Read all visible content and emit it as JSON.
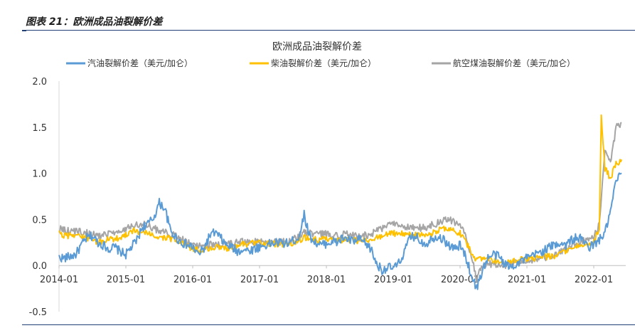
{
  "figure": {
    "caption": "图表 21：欧洲成品油裂解价差"
  },
  "chart_data": {
    "type": "line",
    "title": "欧洲成品油裂解价差",
    "xlabel": "",
    "ylabel": "",
    "ylim": [
      -0.5,
      2.0
    ],
    "yticks": [
      "2.0",
      "1.5",
      "1.0",
      "0.5",
      "0.0",
      "-0.5"
    ],
    "xticks": [
      "2014-01",
      "2015-01",
      "2016-01",
      "2017-01",
      "2018-01",
      "2019-01",
      "2020-01",
      "2021-01",
      "2022-01"
    ],
    "x_range": [
      "2014-01",
      "2022-06"
    ],
    "grid": false,
    "legend_position": "top",
    "series": [
      {
        "name": "汽油裂解价差（美元/加仑）",
        "color": "#5b9bd5",
        "points": [
          [
            "2014-01",
            0.09
          ],
          [
            "2014-02",
            0.08
          ],
          [
            "2014-04",
            0.12
          ],
          [
            "2014-05",
            0.22
          ],
          [
            "2014-06",
            0.3
          ],
          [
            "2014-07",
            0.32
          ],
          [
            "2014-08",
            0.25
          ],
          [
            "2014-09",
            0.22
          ],
          [
            "2014-10",
            0.18
          ],
          [
            "2014-11",
            0.2
          ],
          [
            "2014-12",
            0.15
          ],
          [
            "2015-01",
            0.12
          ],
          [
            "2015-02",
            0.2
          ],
          [
            "2015-03",
            0.28
          ],
          [
            "2015-04",
            0.42
          ],
          [
            "2015-05",
            0.45
          ],
          [
            "2015-06",
            0.52
          ],
          [
            "2015-07",
            0.68
          ],
          [
            "2015-08",
            0.62
          ],
          [
            "2015-09",
            0.38
          ],
          [
            "2015-10",
            0.3
          ],
          [
            "2015-11",
            0.25
          ],
          [
            "2015-12",
            0.22
          ],
          [
            "2016-01",
            0.2
          ],
          [
            "2016-02",
            0.12
          ],
          [
            "2016-03",
            0.18
          ],
          [
            "2016-04",
            0.32
          ],
          [
            "2016-05",
            0.36
          ],
          [
            "2016-06",
            0.3
          ],
          [
            "2016-07",
            0.22
          ],
          [
            "2016-08",
            0.2
          ],
          [
            "2016-09",
            0.15
          ],
          [
            "2016-10",
            0.18
          ],
          [
            "2016-11",
            0.16
          ],
          [
            "2016-12",
            0.18
          ],
          [
            "2017-01",
            0.2
          ],
          [
            "2017-02",
            0.22
          ],
          [
            "2017-04",
            0.25
          ],
          [
            "2017-06",
            0.24
          ],
          [
            "2017-08",
            0.3
          ],
          [
            "2017-09",
            0.55
          ],
          [
            "2017-10",
            0.32
          ],
          [
            "2017-11",
            0.25
          ],
          [
            "2017-12",
            0.22
          ],
          [
            "2018-01",
            0.24
          ],
          [
            "2018-02",
            0.26
          ],
          [
            "2018-03",
            0.25
          ],
          [
            "2018-04",
            0.3
          ],
          [
            "2018-05",
            0.28
          ],
          [
            "2018-06",
            0.26
          ],
          [
            "2018-07",
            0.28
          ],
          [
            "2018-08",
            0.24
          ],
          [
            "2018-09",
            0.18
          ],
          [
            "2018-10",
            0.02
          ],
          [
            "2018-11",
            -0.05
          ],
          [
            "2018-12",
            -0.02
          ],
          [
            "2019-01",
            -0.03
          ],
          [
            "2019-02",
            0.02
          ],
          [
            "2019-03",
            0.15
          ],
          [
            "2019-04",
            0.3
          ],
          [
            "2019-05",
            0.32
          ],
          [
            "2019-06",
            0.26
          ],
          [
            "2019-07",
            0.24
          ],
          [
            "2019-08",
            0.3
          ],
          [
            "2019-09",
            0.32
          ],
          [
            "2019-10",
            0.28
          ],
          [
            "2019-11",
            0.22
          ],
          [
            "2019-12",
            0.18
          ],
          [
            "2020-01",
            0.22
          ],
          [
            "2020-02",
            0.1
          ],
          [
            "2020-03",
            -0.1
          ],
          [
            "2020-04",
            -0.25
          ],
          [
            "2020-05",
            -0.05
          ],
          [
            "2020-06",
            0.08
          ],
          [
            "2020-07",
            0.12
          ],
          [
            "2020-08",
            0.1
          ],
          [
            "2020-09",
            0.02
          ],
          [
            "2020-10",
            -0.02
          ],
          [
            "2020-11",
            0.02
          ],
          [
            "2020-12",
            0.05
          ],
          [
            "2021-01",
            0.08
          ],
          [
            "2021-02",
            0.1
          ],
          [
            "2021-03",
            0.14
          ],
          [
            "2021-04",
            0.16
          ],
          [
            "2021-05",
            0.2
          ],
          [
            "2021-06",
            0.22
          ],
          [
            "2021-07",
            0.25
          ],
          [
            "2021-08",
            0.22
          ],
          [
            "2021-09",
            0.28
          ],
          [
            "2021-10",
            0.3
          ],
          [
            "2021-11",
            0.28
          ],
          [
            "2021-12",
            0.2
          ],
          [
            "2022-01",
            0.22
          ],
          [
            "2022-02",
            0.28
          ],
          [
            "2022-03",
            0.35
          ],
          [
            "2022-04",
            0.58
          ],
          [
            "2022-05",
            0.92
          ],
          [
            "2022-06",
            1.0
          ]
        ]
      },
      {
        "name": "柴油裂解价差（美元/加仑）",
        "color": "#ffc000",
        "points": [
          [
            "2014-01",
            0.35
          ],
          [
            "2014-02",
            0.32
          ],
          [
            "2014-04",
            0.34
          ],
          [
            "2014-06",
            0.3
          ],
          [
            "2014-08",
            0.25
          ],
          [
            "2014-10",
            0.28
          ],
          [
            "2014-12",
            0.3
          ],
          [
            "2015-01",
            0.34
          ],
          [
            "2015-02",
            0.38
          ],
          [
            "2015-04",
            0.36
          ],
          [
            "2015-06",
            0.32
          ],
          [
            "2015-08",
            0.3
          ],
          [
            "2015-10",
            0.28
          ],
          [
            "2015-12",
            0.22
          ],
          [
            "2016-01",
            0.18
          ],
          [
            "2016-03",
            0.17
          ],
          [
            "2016-05",
            0.2
          ],
          [
            "2016-07",
            0.18
          ],
          [
            "2016-09",
            0.22
          ],
          [
            "2016-11",
            0.24
          ],
          [
            "2017-01",
            0.24
          ],
          [
            "2017-03",
            0.24
          ],
          [
            "2017-05",
            0.22
          ],
          [
            "2017-07",
            0.25
          ],
          [
            "2017-09",
            0.3
          ],
          [
            "2017-11",
            0.28
          ],
          [
            "2018-01",
            0.28
          ],
          [
            "2018-03",
            0.27
          ],
          [
            "2018-05",
            0.28
          ],
          [
            "2018-07",
            0.26
          ],
          [
            "2018-09",
            0.28
          ],
          [
            "2018-11",
            0.32
          ],
          [
            "2019-01",
            0.35
          ],
          [
            "2019-03",
            0.34
          ],
          [
            "2019-05",
            0.33
          ],
          [
            "2019-07",
            0.32
          ],
          [
            "2019-09",
            0.38
          ],
          [
            "2019-11",
            0.4
          ],
          [
            "2020-01",
            0.35
          ],
          [
            "2020-02",
            0.25
          ],
          [
            "2020-03",
            0.15
          ],
          [
            "2020-04",
            0.05
          ],
          [
            "2020-05",
            0.08
          ],
          [
            "2020-07",
            0.06
          ],
          [
            "2020-09",
            0.02
          ],
          [
            "2020-11",
            0.05
          ],
          [
            "2021-01",
            0.08
          ],
          [
            "2021-03",
            0.08
          ],
          [
            "2021-05",
            0.1
          ],
          [
            "2021-07",
            0.12
          ],
          [
            "2021-09",
            0.2
          ],
          [
            "2021-11",
            0.22
          ],
          [
            "2022-01",
            0.25
          ],
          [
            "2022-02",
            0.4
          ],
          [
            "2022-02b",
            1.6
          ],
          [
            "2022-03",
            1.05
          ],
          [
            "2022-04",
            0.95
          ],
          [
            "2022-05",
            1.1
          ],
          [
            "2022-06",
            1.15
          ]
        ]
      },
      {
        "name": "航空煤油裂解价差（美元/加仑）",
        "color": "#a5a5a5",
        "points": [
          [
            "2014-01",
            0.4
          ],
          [
            "2014-02",
            0.38
          ],
          [
            "2014-04",
            0.37
          ],
          [
            "2014-06",
            0.35
          ],
          [
            "2014-08",
            0.32
          ],
          [
            "2014-10",
            0.34
          ],
          [
            "2014-12",
            0.36
          ],
          [
            "2015-01",
            0.4
          ],
          [
            "2015-02",
            0.44
          ],
          [
            "2015-04",
            0.46
          ],
          [
            "2015-06",
            0.4
          ],
          [
            "2015-08",
            0.36
          ],
          [
            "2015-10",
            0.32
          ],
          [
            "2015-12",
            0.25
          ],
          [
            "2016-01",
            0.22
          ],
          [
            "2016-03",
            0.2
          ],
          [
            "2016-05",
            0.24
          ],
          [
            "2016-07",
            0.22
          ],
          [
            "2016-09",
            0.25
          ],
          [
            "2016-11",
            0.26
          ],
          [
            "2017-01",
            0.25
          ],
          [
            "2017-03",
            0.26
          ],
          [
            "2017-05",
            0.25
          ],
          [
            "2017-07",
            0.28
          ],
          [
            "2017-09",
            0.36
          ],
          [
            "2017-11",
            0.34
          ],
          [
            "2018-01",
            0.34
          ],
          [
            "2018-03",
            0.33
          ],
          [
            "2018-05",
            0.34
          ],
          [
            "2018-07",
            0.32
          ],
          [
            "2018-09",
            0.34
          ],
          [
            "2018-11",
            0.4
          ],
          [
            "2019-01",
            0.46
          ],
          [
            "2019-03",
            0.42
          ],
          [
            "2019-05",
            0.4
          ],
          [
            "2019-07",
            0.42
          ],
          [
            "2019-09",
            0.46
          ],
          [
            "2019-11",
            0.5
          ],
          [
            "2020-01",
            0.45
          ],
          [
            "2020-02",
            0.3
          ],
          [
            "2020-03",
            0.1
          ],
          [
            "2020-04",
            -0.15
          ],
          [
            "2020-05",
            0.0
          ],
          [
            "2020-07",
            0.02
          ],
          [
            "2020-09",
            0.0
          ],
          [
            "2020-11",
            0.03
          ],
          [
            "2021-01",
            0.05
          ],
          [
            "2021-03",
            0.06
          ],
          [
            "2021-05",
            0.1
          ],
          [
            "2021-07",
            0.14
          ],
          [
            "2021-09",
            0.22
          ],
          [
            "2021-11",
            0.26
          ],
          [
            "2022-01",
            0.3
          ],
          [
            "2022-02",
            0.45
          ],
          [
            "2022-03",
            1.25
          ],
          [
            "2022-04",
            1.1
          ],
          [
            "2022-05",
            1.5
          ],
          [
            "2022-06",
            1.55
          ]
        ]
      }
    ]
  }
}
